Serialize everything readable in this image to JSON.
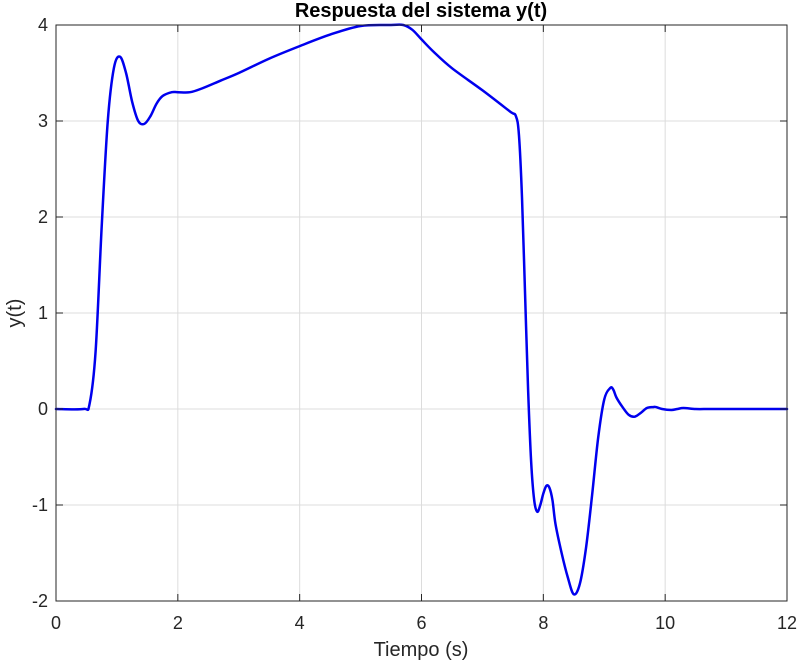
{
  "chart_data": {
    "type": "line",
    "title": "Respuesta del sistema y(t)",
    "xlabel": "Tiempo (s)",
    "ylabel": "y(t)",
    "xlim": [
      0,
      12
    ],
    "ylim": [
      -2,
      4
    ],
    "xticks": [
      0,
      2,
      4,
      6,
      8,
      10,
      12
    ],
    "yticks": [
      -2,
      -1,
      0,
      1,
      2,
      3,
      4
    ],
    "grid": true,
    "series": [
      {
        "color": "#0000ee",
        "x": [
          0,
          0.45,
          0.55,
          0.65,
          0.75,
          0.85,
          0.95,
          1.05,
          1.15,
          1.25,
          1.35,
          1.45,
          1.55,
          1.65,
          1.75,
          1.9,
          2.0,
          2.2,
          2.4,
          2.7,
          3.0,
          3.5,
          4.0,
          4.5,
          5.0,
          5.5,
          5.7,
          5.85,
          6.0,
          6.2,
          6.5,
          7.0,
          7.45,
          7.55,
          7.6,
          7.65,
          7.7,
          7.75,
          7.8,
          7.85,
          7.9,
          7.95,
          8.0,
          8.05,
          8.1,
          8.15,
          8.2,
          8.3,
          8.4,
          8.5,
          8.6,
          8.7,
          8.8,
          8.9,
          9.0,
          9.1,
          9.15,
          9.2,
          9.3,
          9.4,
          9.5,
          9.6,
          9.7,
          9.8,
          9.85,
          9.95,
          10.1,
          10.2,
          10.3,
          10.5,
          10.7,
          10.9,
          11.2,
          11.6,
          12.0
        ],
        "y": [
          0,
          0,
          0.05,
          0.6,
          1.9,
          3.0,
          3.55,
          3.67,
          3.5,
          3.2,
          3.0,
          2.97,
          3.05,
          3.18,
          3.26,
          3.3,
          3.3,
          3.3,
          3.34,
          3.42,
          3.5,
          3.65,
          3.78,
          3.9,
          3.99,
          4.0,
          4.0,
          3.95,
          3.85,
          3.72,
          3.55,
          3.32,
          3.1,
          3.05,
          2.85,
          2.2,
          1.2,
          0.2,
          -0.55,
          -0.95,
          -1.07,
          -1.0,
          -0.88,
          -0.8,
          -0.82,
          -0.95,
          -1.2,
          -1.5,
          -1.75,
          -1.93,
          -1.82,
          -1.45,
          -0.9,
          -0.3,
          0.1,
          0.22,
          0.2,
          0.12,
          0.02,
          -0.06,
          -0.08,
          -0.04,
          0.01,
          0.02,
          0.02,
          0.0,
          -0.01,
          0.0,
          0.01,
          0.0,
          0.0,
          0.0,
          0.0,
          0.0,
          0.0
        ]
      }
    ]
  }
}
